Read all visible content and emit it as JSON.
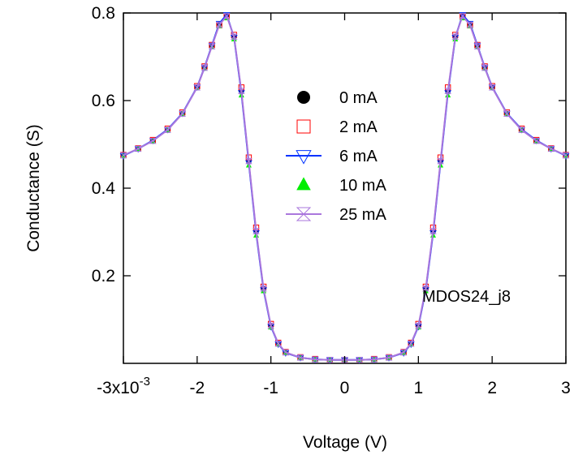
{
  "chart_data": {
    "type": "scatter",
    "title": "",
    "xlabel": "Voltage (V)",
    "ylabel": "Conductance (S)",
    "xlim": [
      -0.003,
      0.003
    ],
    "ylim": [
      0.0,
      0.8
    ],
    "x_ticks": [
      -0.003,
      -0.002,
      -0.001,
      0,
      0.001,
      0.002,
      0.003
    ],
    "x_tick_labels": [
      "-3x10",
      "-2",
      "-1",
      "0",
      "1",
      "2",
      "3"
    ],
    "x_tick_exponent": "-3",
    "y_ticks": [
      0.2,
      0.4,
      0.6,
      0.8
    ],
    "y_tick_labels": [
      "0.2",
      "0.4",
      "0.6",
      "0.8"
    ],
    "grid": false,
    "legend_position": "center",
    "annotation": "MDOS24_j8",
    "x": [
      -0.003,
      -0.0028,
      -0.0026,
      -0.0024,
      -0.0022,
      -0.002,
      -0.0019,
      -0.0018,
      -0.0017,
      -0.0016,
      -0.0015,
      -0.0014,
      -0.0013,
      -0.0012,
      -0.0011,
      -0.001,
      -0.0009,
      -0.0008,
      -0.0006,
      -0.0004,
      -0.0002,
      0,
      0.0002,
      0.0004,
      0.0006,
      0.0008,
      0.0009,
      0.001,
      0.0011,
      0.0012,
      0.0013,
      0.0014,
      0.0015,
      0.0016,
      0.0017,
      0.0018,
      0.0019,
      0.002,
      0.0022,
      0.0024,
      0.0026,
      0.0028,
      0.003
    ],
    "series": [
      {
        "name": "0 mA",
        "marker": "circle",
        "color": "#000000",
        "values": [
          0.475,
          0.49,
          0.508,
          0.533,
          0.57,
          0.63,
          0.675,
          0.725,
          0.775,
          0.795,
          0.745,
          0.62,
          0.46,
          0.3,
          0.17,
          0.085,
          0.045,
          0.025,
          0.013,
          0.009,
          0.008,
          0.008,
          0.008,
          0.009,
          0.013,
          0.025,
          0.045,
          0.085,
          0.17,
          0.3,
          0.46,
          0.62,
          0.745,
          0.795,
          0.775,
          0.725,
          0.675,
          0.63,
          0.57,
          0.533,
          0.508,
          0.49,
          0.475
        ]
      },
      {
        "name": "2 mA",
        "marker": "square",
        "color": "#ff0000",
        "values": [
          0.476,
          0.491,
          0.51,
          0.536,
          0.573,
          0.633,
          0.678,
          0.727,
          0.772,
          0.792,
          0.75,
          0.63,
          0.47,
          0.31,
          0.175,
          0.09,
          0.047,
          0.026,
          0.014,
          0.01,
          0.008,
          0.008,
          0.008,
          0.01,
          0.014,
          0.026,
          0.047,
          0.09,
          0.175,
          0.31,
          0.47,
          0.63,
          0.75,
          0.792,
          0.772,
          0.727,
          0.678,
          0.633,
          0.573,
          0.536,
          0.51,
          0.491,
          0.476
        ]
      },
      {
        "name": "6 mA",
        "marker": "triangle-down",
        "color": "#0033ff",
        "values": [
          0.474,
          0.49,
          0.509,
          0.534,
          0.571,
          0.631,
          0.676,
          0.726,
          0.776,
          0.796,
          0.744,
          0.618,
          0.458,
          0.298,
          0.168,
          0.084,
          0.044,
          0.024,
          0.013,
          0.009,
          0.008,
          0.008,
          0.008,
          0.009,
          0.013,
          0.024,
          0.044,
          0.084,
          0.168,
          0.298,
          0.458,
          0.618,
          0.744,
          0.796,
          0.776,
          0.726,
          0.676,
          0.631,
          0.571,
          0.534,
          0.509,
          0.49,
          0.474
        ]
      },
      {
        "name": "10 mA",
        "marker": "triangle-up",
        "color": "#00ee00",
        "values": [
          0.473,
          0.489,
          0.507,
          0.532,
          0.569,
          0.628,
          0.673,
          0.722,
          0.77,
          0.788,
          0.74,
          0.612,
          0.452,
          0.292,
          0.165,
          0.082,
          0.043,
          0.024,
          0.013,
          0.009,
          0.008,
          0.008,
          0.008,
          0.009,
          0.013,
          0.024,
          0.043,
          0.082,
          0.165,
          0.292,
          0.452,
          0.612,
          0.74,
          0.788,
          0.77,
          0.722,
          0.673,
          0.628,
          0.569,
          0.532,
          0.507,
          0.489,
          0.473
        ]
      },
      {
        "name": "25 mA",
        "marker": "hourglass",
        "color": "#aa77dd",
        "values": [
          0.475,
          0.49,
          0.508,
          0.533,
          0.57,
          0.63,
          0.675,
          0.724,
          0.773,
          0.793,
          0.746,
          0.622,
          0.462,
          0.302,
          0.171,
          0.086,
          0.045,
          0.025,
          0.013,
          0.009,
          0.008,
          0.008,
          0.008,
          0.009,
          0.013,
          0.025,
          0.045,
          0.086,
          0.171,
          0.302,
          0.462,
          0.622,
          0.746,
          0.793,
          0.773,
          0.724,
          0.675,
          0.63,
          0.57,
          0.533,
          0.508,
          0.49,
          0.475
        ]
      }
    ]
  }
}
